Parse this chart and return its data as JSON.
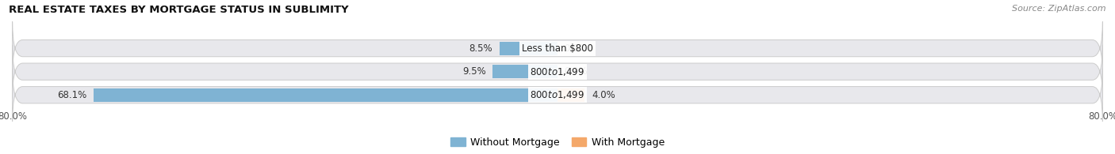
{
  "title": "REAL ESTATE TAXES BY MORTGAGE STATUS IN SUBLIMITY",
  "source": "Source: ZipAtlas.com",
  "categories": [
    "Less than $800",
    "$800 to $1,499",
    "$800 to $1,499"
  ],
  "without_mortgage": [
    8.5,
    9.5,
    68.1
  ],
  "with_mortgage": [
    0.0,
    0.0,
    4.0
  ],
  "xlim_left": -80.0,
  "xlim_right": 80.0,
  "color_without": "#7fb3d3",
  "color_with": "#f4a86a",
  "color_bg_bar": "#e8e8ec",
  "color_bg_bar_edge": "#cccccc",
  "title_fontsize": 9.5,
  "source_fontsize": 8,
  "bar_label_fontsize": 8.5,
  "cat_label_fontsize": 8.5,
  "legend_fontsize": 9,
  "legend_label_without": "Without Mortgage",
  "legend_label_with": "With Mortgage",
  "xtick_left_label": "80.0%",
  "xtick_right_label": "80.0%"
}
